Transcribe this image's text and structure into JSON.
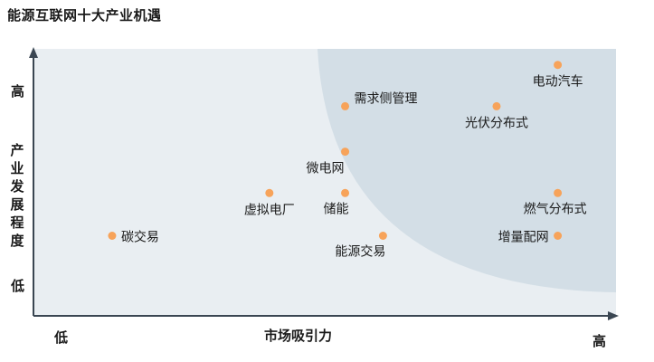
{
  "chart_data": {
    "type": "scatter",
    "title": "能源互联网十大产业机遇",
    "xlabel": "市场吸引力",
    "ylabel": "产业发展程度",
    "x_low_label": "低",
    "x_high_label": "高",
    "y_low_label": "低",
    "y_high_label": "高",
    "xlim": [
      0,
      10
    ],
    "ylim": [
      0,
      10
    ],
    "grid": false,
    "colors": {
      "plot_background": "#e9eef2",
      "highlight_region": "#d3dee6",
      "axis": "#3a4652",
      "marker": "#f7a35a"
    },
    "points": [
      {
        "label": "碳交易",
        "x": 1.35,
        "y": 3.0
      },
      {
        "label": "虚拟电厂",
        "x": 4.05,
        "y": 4.6
      },
      {
        "label": "储能",
        "x": 5.35,
        "y": 4.6
      },
      {
        "label": "微电网",
        "x": 5.35,
        "y": 6.15
      },
      {
        "label": "需求侧管理",
        "x": 5.35,
        "y": 7.85
      },
      {
        "label": "能源交易",
        "x": 6.0,
        "y": 3.0
      },
      {
        "label": "光伏分布式",
        "x": 7.95,
        "y": 7.85
      },
      {
        "label": "电动汽车",
        "x": 9.0,
        "y": 9.4
      },
      {
        "label": "燃气分布式",
        "x": 9.0,
        "y": 4.6
      },
      {
        "label": "增量配网",
        "x": 9.0,
        "y": 3.0
      }
    ]
  }
}
